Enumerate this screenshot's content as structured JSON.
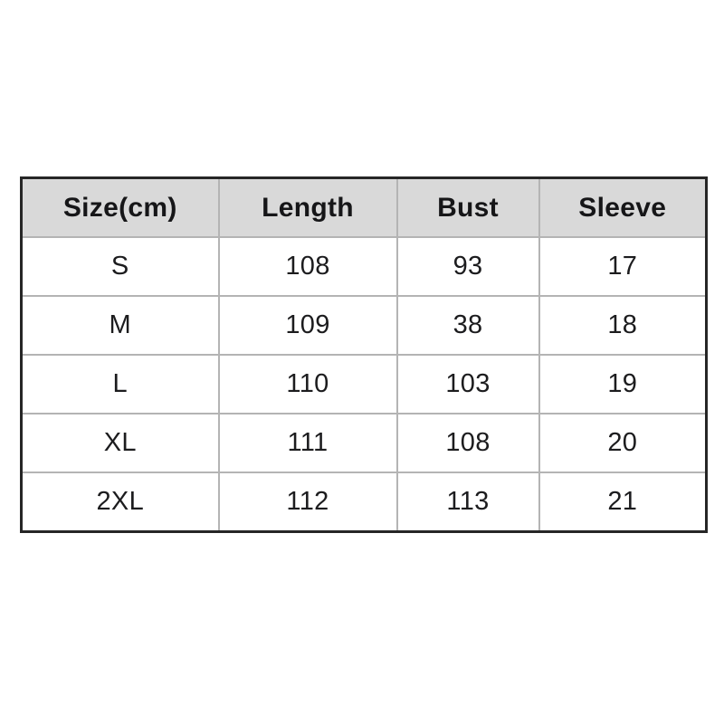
{
  "colors": {
    "page_background": "#ffffff",
    "header_background": "#d9d9d9",
    "outer_border": "#262626",
    "inner_border": "#b4b4b4",
    "text": "#1c1c1e"
  },
  "chart_data": {
    "type": "table",
    "title": "",
    "columns": [
      "Size(cm)",
      "Length",
      "Bust",
      "Sleeve"
    ],
    "rows": [
      [
        "S",
        "108",
        "93",
        "17"
      ],
      [
        "M",
        "109",
        "38",
        "18"
      ],
      [
        "L",
        "110",
        "103",
        "19"
      ],
      [
        "XL",
        "111",
        "108",
        "20"
      ],
      [
        "2XL",
        "112",
        "113",
        "21"
      ]
    ],
    "layout": {
      "grid": "on",
      "header_style": "gray-fill-bold",
      "alignment": "center"
    }
  }
}
